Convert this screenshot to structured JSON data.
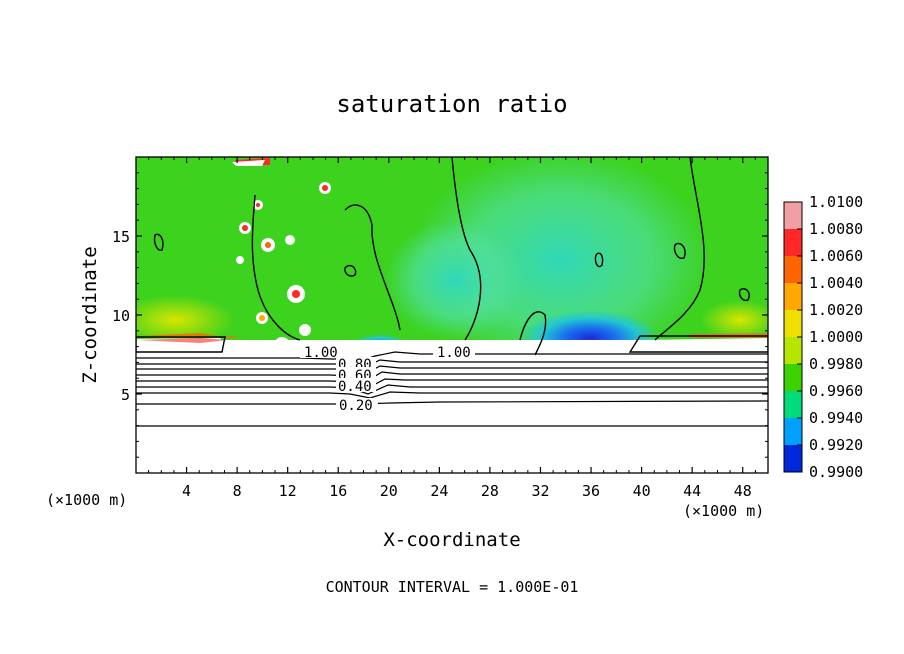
{
  "chart_data": {
    "type": "heatmap",
    "title": "saturation ratio",
    "xlabel": "X-coordinate",
    "ylabel": "Z-coordinate",
    "x_unit": "(×1000 m)",
    "y_unit": "(×1000 m)",
    "xlim": [
      0,
      50
    ],
    "ylim": [
      0,
      20
    ],
    "x_ticks": [
      4,
      8,
      12,
      16,
      20,
      24,
      28,
      32,
      36,
      40,
      44,
      48
    ],
    "y_ticks": [
      5,
      10,
      15
    ],
    "colorbar": {
      "levels": [
        "1.0100",
        "1.0080",
        "1.0060",
        "1.0040",
        "1.0020",
        "1.0000",
        "0.9980",
        "0.9960",
        "0.9940",
        "0.9920",
        "0.9900"
      ],
      "colors": [
        "#f0a0a0",
        "#ff2828",
        "#ff6400",
        "#ffa800",
        "#f0e000",
        "#b4e600",
        "#3cd200",
        "#00dc78",
        "#00a0ff",
        "#0028dc",
        "#6400b4"
      ]
    },
    "contour_labels": [
      {
        "text": "1.00",
        "x": 17.5,
        "z": 7.4
      },
      {
        "text": "1.00",
        "x": 31.0,
        "z": 7.4
      },
      {
        "text": "0.80",
        "x": 17.6,
        "z": 6.6
      },
      {
        "text": "0.60",
        "x": 17.4,
        "z": 5.9
      },
      {
        "text": "0.40",
        "x": 17.2,
        "z": 5.2
      },
      {
        "text": "0.20",
        "x": 17.4,
        "z": 4.1
      }
    ],
    "contour_interval_note": "CONTOUR INTERVAL = 1.000E-01"
  }
}
